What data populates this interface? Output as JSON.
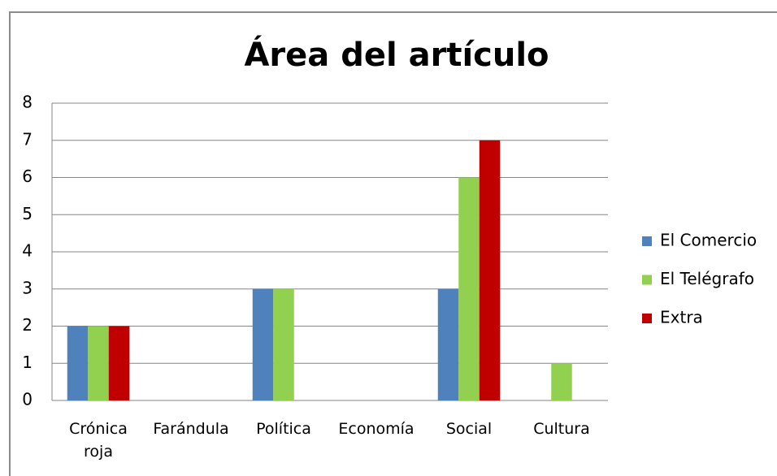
{
  "chart_data": {
    "type": "bar",
    "title": "Área del artículo",
    "categories": [
      "Crónica roja",
      "Farándula",
      "Política",
      "Economía",
      "Social",
      "Cultura"
    ],
    "series": [
      {
        "name": "El Comercio",
        "color": "#4f81bd",
        "values": [
          2,
          0,
          3,
          0,
          3,
          0
        ]
      },
      {
        "name": "El Telégrafo",
        "color": "#92d050",
        "values": [
          2,
          0,
          3,
          0,
          6,
          1
        ]
      },
      {
        "name": "Extra",
        "color": "#c00000",
        "values": [
          2,
          0,
          0,
          0,
          7,
          0
        ]
      }
    ],
    "ylim": [
      0,
      8
    ],
    "yticks": [
      0,
      1,
      2,
      3,
      4,
      5,
      6,
      7,
      8
    ],
    "grid": true,
    "legend": "right"
  }
}
